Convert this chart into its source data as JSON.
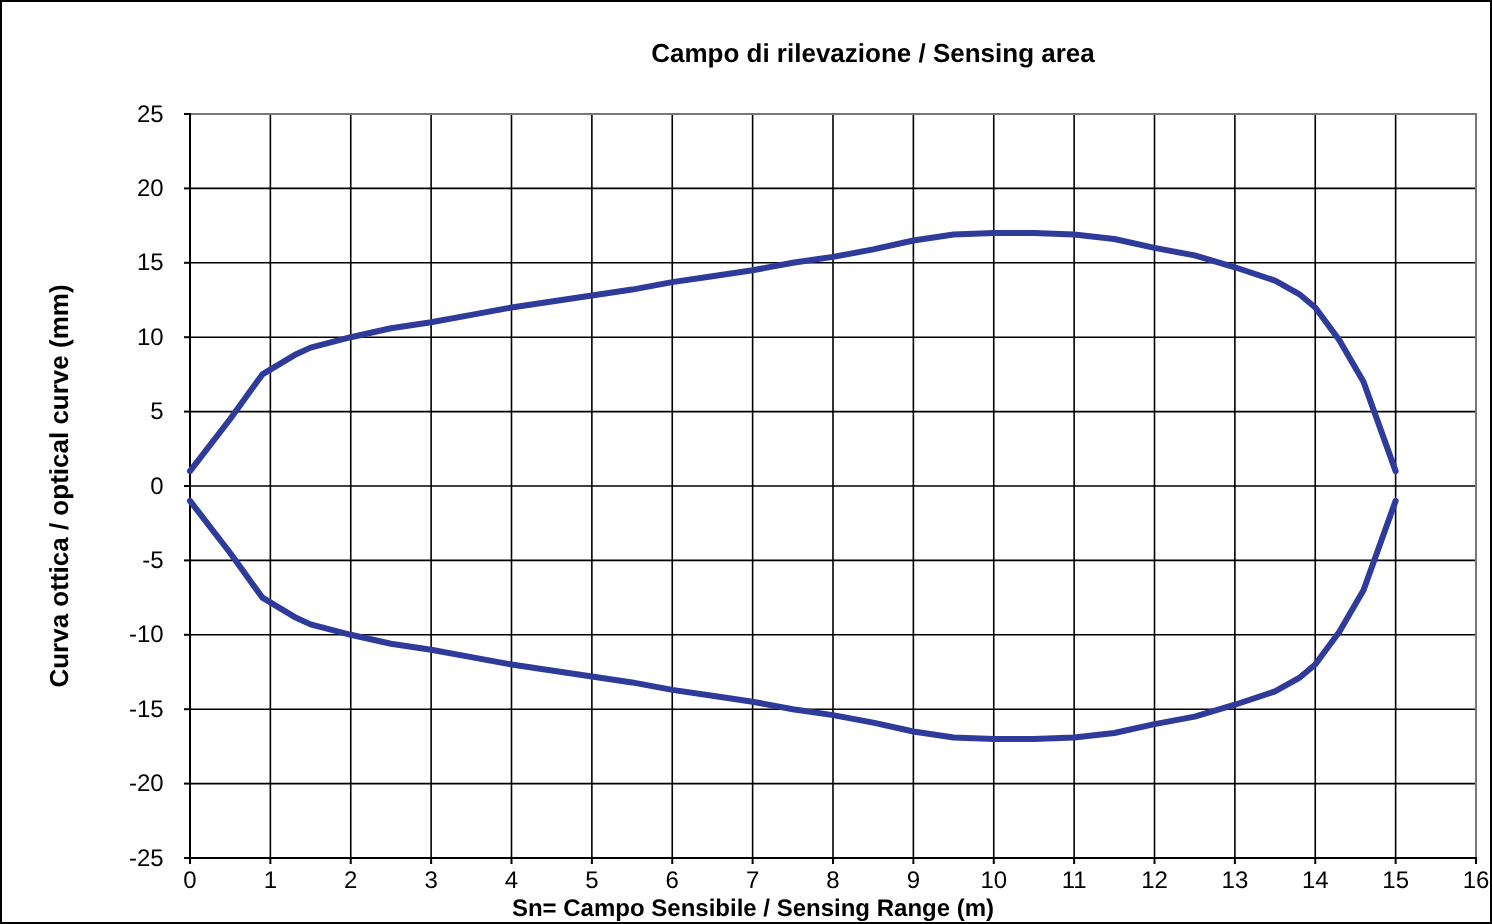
{
  "chart_data": {
    "type": "line",
    "title": "Campo di rilevazione / Sensing area",
    "xlabel": "Sn= Campo Sensibile / Sensing Range (m)",
    "ylabel": "Curva ottica / optical curve (mm)",
    "xlim": [
      0,
      16
    ],
    "xticks": [
      0,
      1,
      2,
      3,
      4,
      5,
      6,
      7,
      8,
      9,
      10,
      11,
      12,
      13,
      14,
      15,
      16
    ],
    "ylim": [
      -25,
      25
    ],
    "yticks": [
      -25,
      -20,
      -15,
      -10,
      -5,
      0,
      5,
      10,
      15,
      20,
      25
    ],
    "grid": true,
    "marker": "none",
    "line_style": "solid",
    "series": [
      {
        "color": "#2e3b9a",
        "x": [
          0,
          0.5,
          0.9,
          1.3,
          1.5,
          2,
          2.5,
          3,
          3.5,
          4,
          4.5,
          5,
          5.5,
          6,
          6.5,
          7,
          7.5,
          8,
          8.5,
          9,
          9.5,
          10,
          10.5,
          11,
          11.5,
          12,
          12.5,
          13,
          13.5,
          13.8,
          14,
          14.3,
          14.6,
          15
        ],
        "values": [
          1,
          4.5,
          7.5,
          8.8,
          9.3,
          10,
          10.6,
          11,
          11.5,
          12,
          12.4,
          12.8,
          13.2,
          13.7,
          14.1,
          14.5,
          15,
          15.4,
          15.9,
          16.5,
          16.9,
          17,
          17,
          16.9,
          16.6,
          16,
          15.5,
          14.7,
          13.8,
          12.9,
          12,
          9.8,
          7,
          1
        ]
      },
      {
        "color": "#2e3b9a",
        "x": [
          0,
          0.5,
          0.9,
          1.3,
          1.5,
          2,
          2.5,
          3,
          3.5,
          4,
          4.5,
          5,
          5.5,
          6,
          6.5,
          7,
          7.5,
          8,
          8.5,
          9,
          9.5,
          10,
          10.5,
          11,
          11.5,
          12,
          12.5,
          13,
          13.5,
          13.8,
          14,
          14.3,
          14.6,
          15
        ],
        "values": [
          -1,
          -4.5,
          -7.5,
          -8.8,
          -9.3,
          -10,
          -10.6,
          -11,
          -11.5,
          -12,
          -12.4,
          -12.8,
          -13.2,
          -13.7,
          -14.1,
          -14.5,
          -15,
          -15.4,
          -15.9,
          -16.5,
          -16.9,
          -17,
          -17,
          -16.9,
          -16.6,
          -16,
          -15.5,
          -14.7,
          -13.8,
          -12.9,
          -12,
          -9.8,
          -7,
          -1
        ]
      }
    ]
  }
}
